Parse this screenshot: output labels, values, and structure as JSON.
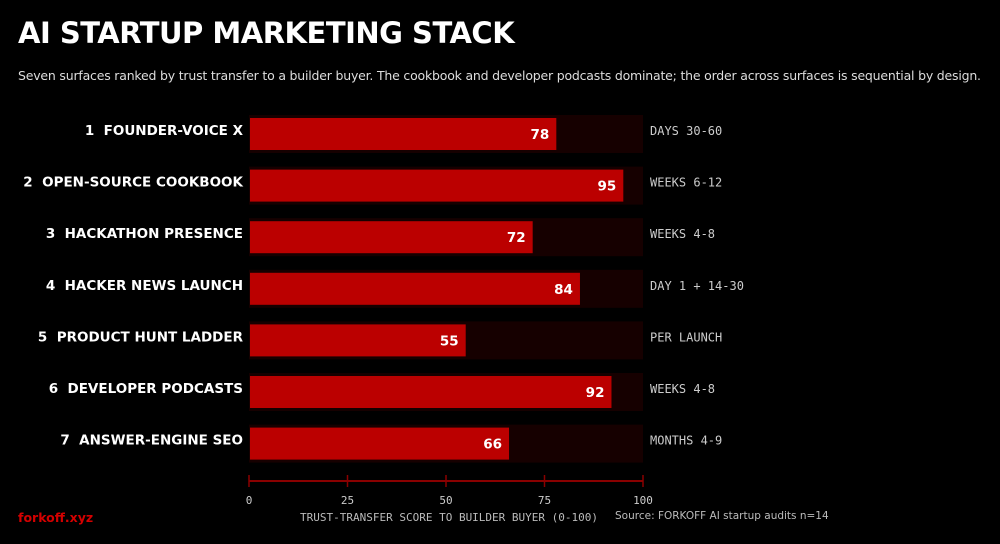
{
  "title": "AI STARTUP MARKETING STACK",
  "subtitle": "Seven surfaces ranked by trust transfer to a builder buyer. The cookbook and developer podcasts dominate; the order across surfaces is sequential by design.",
  "brand": "forkoff.xyz",
  "source": "Source: FORKOFF AI startup audits n=14",
  "colors": {
    "bar": "#bb0000",
    "track": "#160000",
    "axis": "#8a0000",
    "brand": "#d40000"
  },
  "chart_data": {
    "type": "bar",
    "orientation": "horizontal",
    "categories": [
      "1  FOUNDER-VOICE X",
      "2  OPEN-SOURCE COOKBOOK",
      "3  HACKATHON PRESENCE",
      "4  HACKER NEWS LAUNCH",
      "5  PRODUCT HUNT LADDER",
      "6  DEVELOPER PODCASTS",
      "7  ANSWER-ENGINE SEO"
    ],
    "values": [
      78,
      95,
      72,
      84,
      55,
      92,
      66
    ],
    "annotations": [
      "DAYS 30-60",
      "WEEKS 6-12",
      "WEEKS 4-8",
      "DAY 1 + 14-30",
      "PER LAUNCH",
      "WEEKS 4-8",
      "MONTHS 4-9"
    ],
    "xlabel": "TRUST-TRANSFER SCORE TO BUILDER BUYER (0-100)",
    "xlim": [
      0,
      100
    ],
    "xticks": [
      0,
      25,
      50,
      75,
      100
    ],
    "grid": false
  }
}
